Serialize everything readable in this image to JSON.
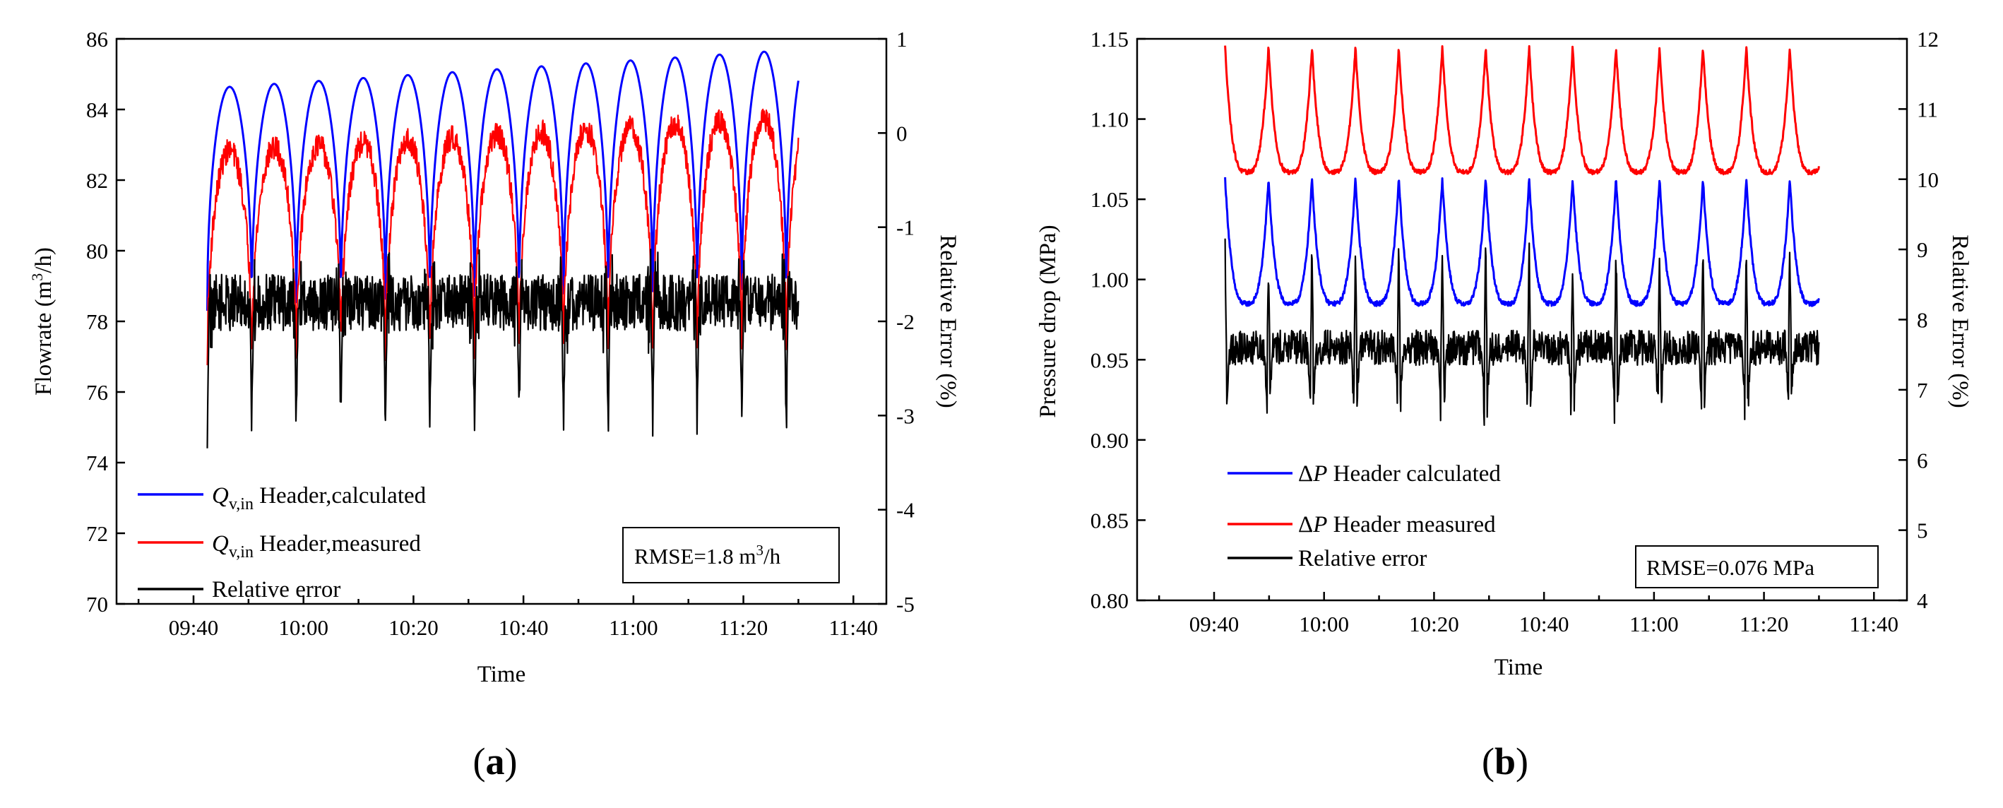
{
  "chart_data": [
    {
      "panel_label": "a",
      "type": "line",
      "xlabel": "Time",
      "ylabel_left": "Flowrate (m",
      "ylabel_left_sup": "3",
      "ylabel_left_tail": "/h)",
      "ylabel_right": "Relative Error (%)",
      "x_ticks": [
        "09:40",
        "10:00",
        "10:20",
        "10:40",
        "11:00",
        "11:20",
        "11:40"
      ],
      "x_range_minutes": [
        -14,
        126
      ],
      "ylim_left": [
        70,
        86
      ],
      "yticks_left": [
        70,
        72,
        74,
        76,
        78,
        80,
        82,
        84,
        86
      ],
      "ylim_right": [
        -5,
        1
      ],
      "yticks_right": [
        -5,
        -4,
        -3,
        -2,
        -1,
        0,
        1
      ],
      "x_start_minutes": 2.5,
      "x_end_minutes": 110,
      "period_minutes": 8.1,
      "series": [
        {
          "name": "calculated",
          "legend_prefix": "Q",
          "legend_sub": "v,in",
          "legend_text": " Header,calculated",
          "color": "#0000ff",
          "axis": "left",
          "pattern": "arch",
          "min": 78.3,
          "max_start": 84.6,
          "max_end": 85.7
        },
        {
          "name": "measured",
          "legend_prefix": "Q",
          "legend_sub": "v,in",
          "legend_text": " Header,measured",
          "color": "#ff0000",
          "axis": "left",
          "pattern": "arch-noisy",
          "min": 76.6,
          "max_start": 82.8,
          "max_end": 83.8,
          "noise": 0.35
        },
        {
          "name": "relative",
          "legend_text": "Relative error",
          "color": "#000000",
          "axis": "right",
          "pattern": "error-dips",
          "base": -1.8,
          "noise": 0.3,
          "dip": -3.3
        }
      ],
      "rmse_prefix": "RMSE=1.8 m",
      "rmse_sup": "3",
      "rmse_suffix": "/h"
    },
    {
      "panel_label": "b",
      "type": "line",
      "xlabel": "Time",
      "ylabel_left": "Pressure drop (MPa)",
      "ylabel_right": "Relative Error (%)",
      "x_ticks": [
        "09:40",
        "10:00",
        "10:20",
        "10:40",
        "11:00",
        "11:20",
        "11:40"
      ],
      "x_range_minutes": [
        -14,
        126
      ],
      "ylim_left": [
        0.8,
        1.15
      ],
      "yticks_left": [
        "0.80",
        "0.85",
        "0.90",
        "0.95",
        "1.00",
        "1.05",
        "1.10",
        "1.15"
      ],
      "ylim_right": [
        4,
        12
      ],
      "yticks_right": [
        4,
        5,
        6,
        7,
        8,
        9,
        10,
        11,
        12
      ],
      "x_start_minutes": 2,
      "x_end_minutes": 110,
      "period_minutes": 7.9,
      "series": [
        {
          "name": "calculated",
          "legend_prefix": "Δ",
          "legend_var": "P",
          "legend_text": " Header calculated",
          "color": "#0000ff",
          "axis": "left",
          "pattern": "cusp",
          "min": 0.985,
          "max": 1.063
        },
        {
          "name": "measured",
          "legend_prefix": "Δ",
          "legend_var": "P",
          "legend_text": " Header measured",
          "color": "#ff0000",
          "axis": "left",
          "pattern": "cusp",
          "min": 1.067,
          "max": 1.145
        },
        {
          "name": "relative",
          "legend_text": "Relative error",
          "color": "#000000",
          "axis": "right",
          "pattern": "error-spikes",
          "base": 7.6,
          "noise": 0.25,
          "spike": 9.3,
          "dip": 6.4
        }
      ],
      "rmse_text": "RMSE=0.076 MPa"
    }
  ]
}
